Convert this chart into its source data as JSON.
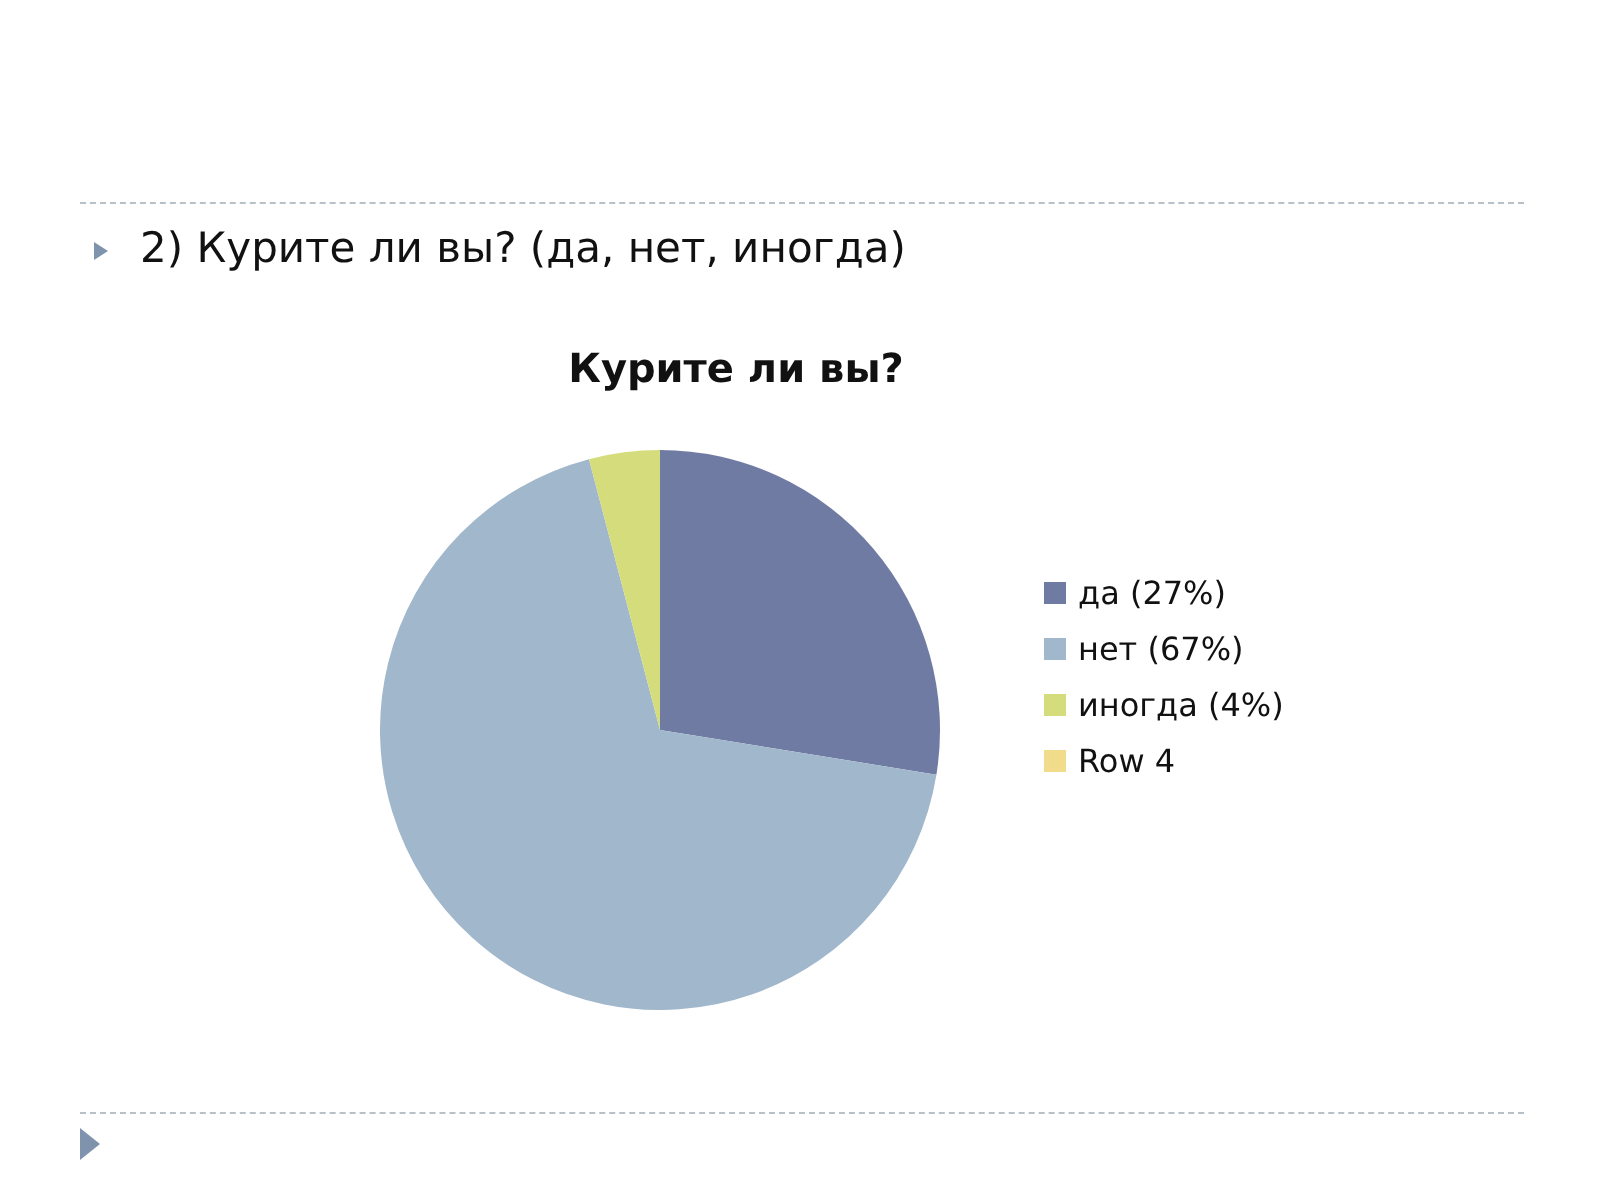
{
  "chart_data": {
    "type": "pie",
    "title": "Курите ли вы?",
    "annotations": [
      "2) Курите ли вы? (да, нет, иногда)"
    ],
    "categories": [
      "да (27%)",
      "нет (67%)",
      "иногда (4%)",
      "Row 4"
    ],
    "values": [
      27,
      67,
      4,
      0
    ],
    "colors": [
      "#6f7ba3",
      "#a1b7cc",
      "#d5dc7c",
      "#f1dc8c"
    ],
    "legend": "right"
  }
}
